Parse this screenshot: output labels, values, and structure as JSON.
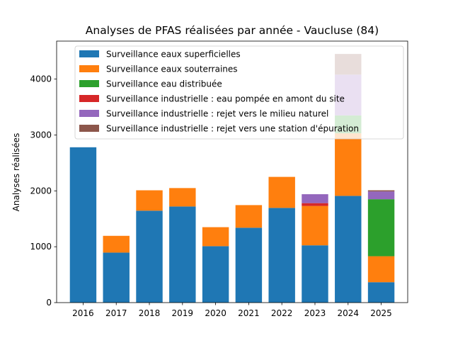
{
  "chart_data": {
    "type": "bar",
    "stacked": true,
    "title": "Analyses de PFAS réalisées par année - Vaucluse (84)",
    "xlabel": "",
    "ylabel": "Analyses réalisées",
    "ylim": [
      0,
      4680
    ],
    "yticks": [
      0,
      1000,
      2000,
      3000,
      4000
    ],
    "grid": false,
    "legend_position": "top",
    "categories": [
      "2016",
      "2017",
      "2018",
      "2019",
      "2020",
      "2021",
      "2022",
      "2023",
      "2024",
      "2025"
    ],
    "series": [
      {
        "name": "Surveillance eaux superficielles",
        "color": "#1f77b4",
        "values": [
          2780,
          895,
          1645,
          1720,
          1010,
          1340,
          1695,
          1025,
          1910,
          365
        ]
      },
      {
        "name": "Surveillance eaux souterraines",
        "color": "#ff7f0e",
        "values": [
          0,
          300,
          365,
          330,
          340,
          405,
          555,
          705,
          1120,
          465
        ]
      },
      {
        "name": "Surveillance eau distribuée",
        "color": "#2ca02c",
        "values": [
          0,
          0,
          0,
          0,
          0,
          0,
          0,
          0,
          320,
          1020
        ]
      },
      {
        "name": "Surveillance industrielle : eau pompée en amont du site",
        "color": "#d62728",
        "values": [
          0,
          0,
          0,
          0,
          0,
          0,
          0,
          50,
          0,
          0
        ]
      },
      {
        "name": "Surveillance industrielle : rejet vers le milieu naturel",
        "color": "#9467bd",
        "values": [
          0,
          0,
          0,
          0,
          0,
          0,
          0,
          160,
          730,
          140
        ]
      },
      {
        "name": "Surveillance industrielle : rejet vers une station d'épuration",
        "color": "#8c564b",
        "values": [
          0,
          0,
          0,
          0,
          0,
          0,
          0,
          0,
          370,
          20
        ]
      }
    ]
  }
}
